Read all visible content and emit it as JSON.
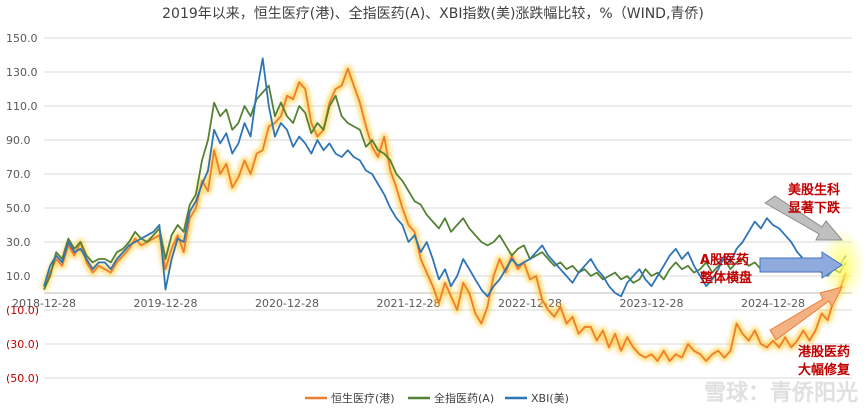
{
  "chart_data": {
    "type": "line",
    "title": "2019年以来，恒生医疗(港)、全指医药(A)、XBI指数(美)涨跌幅比较，%（WIND,青侨)",
    "ylim": [
      -50,
      150
    ],
    "yticks": [
      150,
      130,
      110,
      90,
      70,
      50,
      30,
      10,
      -10,
      -30,
      -50
    ],
    "ytick_labels": [
      "150.0",
      "130.0",
      "110.0",
      "90.0",
      "70.0",
      "50.0",
      "30.0",
      "10.0",
      "(10.0)",
      "(30.0)",
      "(50.0)"
    ],
    "xticks": [
      0,
      1,
      2,
      3,
      4,
      5,
      6
    ],
    "xtick_labels": [
      "2018-12-28",
      "2019-12-28",
      "2020-12-28",
      "2021-12-28",
      "2022-12-28",
      "2023-12-28",
      "2024-12-28"
    ],
    "xlim": [
      0,
      6.65
    ],
    "grid": "horizontal",
    "legend_position": "bottom",
    "series": [
      {
        "name": "恒生医疗(港)",
        "color": "#ed7d31",
        "glow": true,
        "x": [
          0,
          0.05,
          0.1,
          0.15,
          0.2,
          0.25,
          0.3,
          0.35,
          0.4,
          0.45,
          0.5,
          0.55,
          0.6,
          0.65,
          0.7,
          0.75,
          0.8,
          0.85,
          0.9,
          0.95,
          1.0,
          1.05,
          1.1,
          1.15,
          1.2,
          1.25,
          1.3,
          1.35,
          1.4,
          1.45,
          1.5,
          1.55,
          1.6,
          1.65,
          1.7,
          1.75,
          1.8,
          1.85,
          1.9,
          1.95,
          2.0,
          2.05,
          2.1,
          2.15,
          2.2,
          2.25,
          2.3,
          2.35,
          2.4,
          2.45,
          2.5,
          2.55,
          2.6,
          2.65,
          2.7,
          2.75,
          2.8,
          2.85,
          2.9,
          2.95,
          3.0,
          3.05,
          3.1,
          3.15,
          3.2,
          3.25,
          3.3,
          3.35,
          3.4,
          3.45,
          3.5,
          3.55,
          3.6,
          3.65,
          3.7,
          3.75,
          3.8,
          3.85,
          3.9,
          3.95,
          4.0,
          4.05,
          4.1,
          4.15,
          4.2,
          4.25,
          4.3,
          4.35,
          4.4,
          4.45,
          4.5,
          4.55,
          4.6,
          4.65,
          4.7,
          4.75,
          4.8,
          4.85,
          4.9,
          4.95,
          5.0,
          5.05,
          5.1,
          5.15,
          5.2,
          5.25,
          5.3,
          5.35,
          5.4,
          5.45,
          5.5,
          5.55,
          5.6,
          5.65,
          5.7,
          5.75,
          5.8,
          5.85,
          5.9,
          5.95,
          6.0,
          6.05,
          6.1,
          6.15,
          6.2,
          6.25,
          6.3,
          6.35,
          6.4,
          6.45,
          6.5,
          6.55,
          6.6
        ],
        "values": [
          2,
          12,
          20,
          16,
          28,
          22,
          30,
          18,
          12,
          16,
          14,
          12,
          18,
          22,
          26,
          32,
          28,
          30,
          32,
          34,
          14,
          26,
          34,
          24,
          44,
          50,
          66,
          60,
          84,
          70,
          76,
          62,
          68,
          78,
          70,
          82,
          84,
          98,
          100,
          104,
          116,
          114,
          124,
          120,
          100,
          92,
          96,
          112,
          120,
          122,
          132,
          122,
          112,
          98,
          86,
          80,
          92,
          72,
          62,
          50,
          40,
          36,
          20,
          12,
          4,
          -6,
          6,
          -2,
          -10,
          6,
          0,
          -12,
          -18,
          -8,
          10,
          20,
          12,
          22,
          14,
          18,
          8,
          10,
          -4,
          -10,
          -14,
          -8,
          -18,
          -14,
          -24,
          -20,
          -20,
          -28,
          -22,
          -32,
          -24,
          -34,
          -26,
          -32,
          -36,
          -38,
          -36,
          -40,
          -34,
          -40,
          -36,
          -38,
          -30,
          -34,
          -36,
          -40,
          -36,
          -34,
          -38,
          -34,
          -18,
          -24,
          -28,
          -22,
          -30,
          -32,
          -28,
          -32,
          -26,
          -32,
          -28,
          -22,
          -28,
          -22,
          -12,
          -16,
          -4,
          2,
          12
        ]
      },
      {
        "name": "全指医药(A)",
        "color": "#548235",
        "x": [
          0,
          0.05,
          0.1,
          0.15,
          0.2,
          0.25,
          0.3,
          0.35,
          0.4,
          0.45,
          0.5,
          0.55,
          0.6,
          0.65,
          0.7,
          0.75,
          0.8,
          0.85,
          0.9,
          0.95,
          1.0,
          1.05,
          1.1,
          1.15,
          1.2,
          1.25,
          1.3,
          1.35,
          1.4,
          1.45,
          1.5,
          1.55,
          1.6,
          1.65,
          1.7,
          1.75,
          1.8,
          1.85,
          1.9,
          1.95,
          2.0,
          2.05,
          2.1,
          2.15,
          2.2,
          2.25,
          2.3,
          2.35,
          2.4,
          2.45,
          2.5,
          2.55,
          2.6,
          2.65,
          2.7,
          2.75,
          2.8,
          2.85,
          2.9,
          2.95,
          3.0,
          3.05,
          3.1,
          3.15,
          3.2,
          3.25,
          3.3,
          3.35,
          3.4,
          3.45,
          3.5,
          3.55,
          3.6,
          3.65,
          3.7,
          3.75,
          3.8,
          3.85,
          3.9,
          3.95,
          4.0,
          4.05,
          4.1,
          4.15,
          4.2,
          4.25,
          4.3,
          4.35,
          4.4,
          4.45,
          4.5,
          4.55,
          4.6,
          4.65,
          4.7,
          4.75,
          4.8,
          4.85,
          4.9,
          4.95,
          5.0,
          5.05,
          5.1,
          5.15,
          5.2,
          5.25,
          5.3,
          5.35,
          5.4,
          5.45,
          5.5,
          5.55,
          5.6,
          5.65,
          5.7,
          5.75,
          5.8,
          5.85,
          5.9,
          5.95,
          6.0,
          6.05,
          6.1,
          6.15,
          6.2,
          6.25,
          6.3,
          6.35,
          6.4,
          6.45,
          6.5,
          6.55,
          6.6
        ],
        "values": [
          2,
          10,
          24,
          20,
          32,
          26,
          30,
          22,
          18,
          20,
          20,
          18,
          24,
          26,
          30,
          36,
          32,
          30,
          34,
          38,
          20,
          34,
          40,
          36,
          52,
          58,
          78,
          90,
          112,
          104,
          108,
          96,
          100,
          110,
          104,
          114,
          118,
          122,
          104,
          112,
          104,
          100,
          110,
          106,
          94,
          100,
          96,
          110,
          116,
          104,
          100,
          98,
          96,
          86,
          90,
          84,
          82,
          78,
          70,
          66,
          60,
          54,
          52,
          46,
          42,
          38,
          44,
          36,
          40,
          44,
          38,
          34,
          30,
          28,
          30,
          34,
          28,
          22,
          26,
          28,
          20,
          22,
          24,
          20,
          16,
          18,
          14,
          16,
          12,
          14,
          10,
          12,
          8,
          10,
          12,
          8,
          10,
          6,
          8,
          14,
          10,
          12,
          8,
          14,
          18,
          14,
          16,
          12,
          14,
          18,
          12,
          16,
          20,
          14,
          18,
          20,
          16,
          18,
          14,
          20,
          16,
          18,
          14,
          18,
          14,
          16,
          14,
          18,
          14,
          12,
          14,
          12,
          18
        ]
      },
      {
        "name": "XBI(美)",
        "color": "#2e75b6",
        "x": [
          0,
          0.05,
          0.1,
          0.15,
          0.2,
          0.25,
          0.3,
          0.35,
          0.4,
          0.45,
          0.5,
          0.55,
          0.6,
          0.65,
          0.7,
          0.75,
          0.8,
          0.85,
          0.9,
          0.95,
          1.0,
          1.05,
          1.1,
          1.15,
          1.2,
          1.25,
          1.3,
          1.35,
          1.4,
          1.45,
          1.5,
          1.55,
          1.6,
          1.65,
          1.7,
          1.75,
          1.8,
          1.85,
          1.9,
          1.95,
          2.0,
          2.05,
          2.1,
          2.15,
          2.2,
          2.25,
          2.3,
          2.35,
          2.4,
          2.45,
          2.5,
          2.55,
          2.6,
          2.65,
          2.7,
          2.75,
          2.8,
          2.85,
          2.9,
          2.95,
          3.0,
          3.05,
          3.1,
          3.15,
          3.2,
          3.25,
          3.3,
          3.35,
          3.4,
          3.45,
          3.5,
          3.55,
          3.6,
          3.65,
          3.7,
          3.75,
          3.8,
          3.85,
          3.9,
          3.95,
          4.0,
          4.05,
          4.1,
          4.15,
          4.2,
          4.25,
          4.3,
          4.35,
          4.4,
          4.45,
          4.5,
          4.55,
          4.6,
          4.65,
          4.7,
          4.75,
          4.8,
          4.85,
          4.9,
          4.95,
          5.0,
          5.05,
          5.1,
          5.15,
          5.2,
          5.25,
          5.3,
          5.35,
          5.4,
          5.45,
          5.5,
          5.55,
          5.6,
          5.65,
          5.7,
          5.75,
          5.8,
          5.85,
          5.9,
          5.95,
          6.0,
          6.05,
          6.1,
          6.15,
          6.2,
          6.25,
          6.3,
          6.35,
          6.4,
          6.45,
          6.5,
          6.55,
          6.6
        ],
        "values": [
          4,
          16,
          22,
          18,
          30,
          24,
          26,
          20,
          14,
          18,
          18,
          14,
          20,
          24,
          28,
          30,
          32,
          34,
          36,
          40,
          2,
          20,
          32,
          30,
          48,
          54,
          64,
          72,
          96,
          88,
          94,
          82,
          88,
          100,
          92,
          118,
          138,
          110,
          92,
          100,
          96,
          86,
          92,
          88,
          82,
          90,
          84,
          88,
          82,
          80,
          84,
          80,
          78,
          72,
          70,
          64,
          58,
          50,
          44,
          40,
          30,
          34,
          24,
          30,
          20,
          8,
          14,
          4,
          10,
          20,
          14,
          8,
          2,
          -2,
          4,
          8,
          14,
          20,
          16,
          18,
          20,
          24,
          28,
          22,
          18,
          14,
          10,
          6,
          12,
          16,
          20,
          14,
          10,
          4,
          0,
          -2,
          6,
          10,
          14,
          8,
          4,
          10,
          16,
          22,
          26,
          20,
          24,
          16,
          10,
          4,
          8,
          14,
          22,
          18,
          26,
          30,
          36,
          42,
          38,
          44,
          40,
          38,
          34,
          30,
          24,
          20,
          16,
          18,
          12,
          10,
          14,
          16,
          22
        ]
      }
    ],
    "annotations": [
      {
        "text": "美股生科",
        "line2": "显著下跌"
      },
      {
        "text": "A股医药",
        "line2": "整体横盘"
      },
      {
        "text": "港股医药",
        "line2": "大幅修复"
      }
    ]
  },
  "watermark": "雪球：青侨阳光"
}
